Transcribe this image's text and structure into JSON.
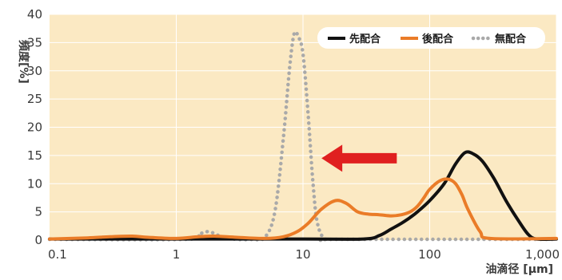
{
  "chart_data": {
    "type": "line",
    "title": "",
    "ylabel": "頻度[%]",
    "xlabel": "油滴径 [μm]",
    "xscale": "log",
    "xlim": [
      0.1,
      1000
    ],
    "ylim": [
      0,
      40
    ],
    "xticks": [
      {
        "value": 0.1,
        "label": "0.1"
      },
      {
        "value": 1,
        "label": "1"
      },
      {
        "value": 10,
        "label": "10"
      },
      {
        "value": 100,
        "label": "100"
      },
      {
        "value": 1000,
        "label": "1,000"
      }
    ],
    "yticks": [
      {
        "value": 0,
        "label": "0"
      },
      {
        "value": 5,
        "label": "5"
      },
      {
        "value": 10,
        "label": "10"
      },
      {
        "value": 15,
        "label": "15"
      },
      {
        "value": 20,
        "label": "20"
      },
      {
        "value": 25,
        "label": "25"
      },
      {
        "value": 30,
        "label": "30"
      },
      {
        "value": 35,
        "label": "35"
      },
      {
        "value": 40,
        "label": "40"
      }
    ],
    "grid": true,
    "legend_position": "top-right",
    "background_color": "#fbe9c3",
    "annotation": {
      "type": "arrow",
      "direction": "left",
      "color": "#e02020",
      "from": [
        55,
        14.5
      ],
      "to": [
        14,
        14.5
      ]
    },
    "series": [
      {
        "name": "先配合",
        "color": "#111111",
        "style": "solid",
        "x": [
          0.1,
          10,
          30,
          40,
          50,
          60,
          70,
          80,
          100,
          130,
          160,
          190,
          220,
          260,
          320,
          400,
          500,
          600,
          700,
          1000
        ],
        "y": [
          0.2,
          0.2,
          0.2,
          0.8,
          2.0,
          3.0,
          4.0,
          5.0,
          7.0,
          10.0,
          13.5,
          15.5,
          15.3,
          14.0,
          11.0,
          7.0,
          3.5,
          1.0,
          0.2,
          0.2
        ]
      },
      {
        "name": "後配合",
        "color": "#ea7c28",
        "style": "solid",
        "x": [
          0.1,
          0.2,
          0.3,
          0.45,
          0.6,
          1,
          1.5,
          2,
          3,
          5,
          7,
          9,
          11,
          14,
          18,
          22,
          27,
          33,
          40,
          50,
          60,
          70,
          80,
          90,
          100,
          120,
          140,
          160,
          180,
          200,
          250,
          300,
          1000
        ],
        "y": [
          0.2,
          0.4,
          0.6,
          0.7,
          0.5,
          0.3,
          0.6,
          0.7,
          0.5,
          0.3,
          0.6,
          1.5,
          3.0,
          5.5,
          7.0,
          6.5,
          5.0,
          4.6,
          4.5,
          4.3,
          4.5,
          5.0,
          6.0,
          7.5,
          9.0,
          10.5,
          10.8,
          10.0,
          8.0,
          5.5,
          1.5,
          0.3,
          0.3
        ]
      },
      {
        "name": "無配合",
        "color": "#a9a9a9",
        "style": "dotted",
        "x": [
          0.1,
          1.2,
          1.5,
          1.8,
          2.3,
          3,
          4,
          5,
          6,
          7,
          7.8,
          8.5,
          9.2,
          10,
          11,
          12,
          13,
          15,
          20,
          1000
        ],
        "y": [
          0.1,
          0.1,
          1.0,
          1.5,
          0.6,
          0.1,
          0.1,
          0.5,
          5.0,
          18.0,
          30.0,
          36.5,
          36.0,
          33.0,
          22.0,
          10.0,
          3.0,
          0.2,
          0.1,
          0.1
        ]
      }
    ]
  }
}
